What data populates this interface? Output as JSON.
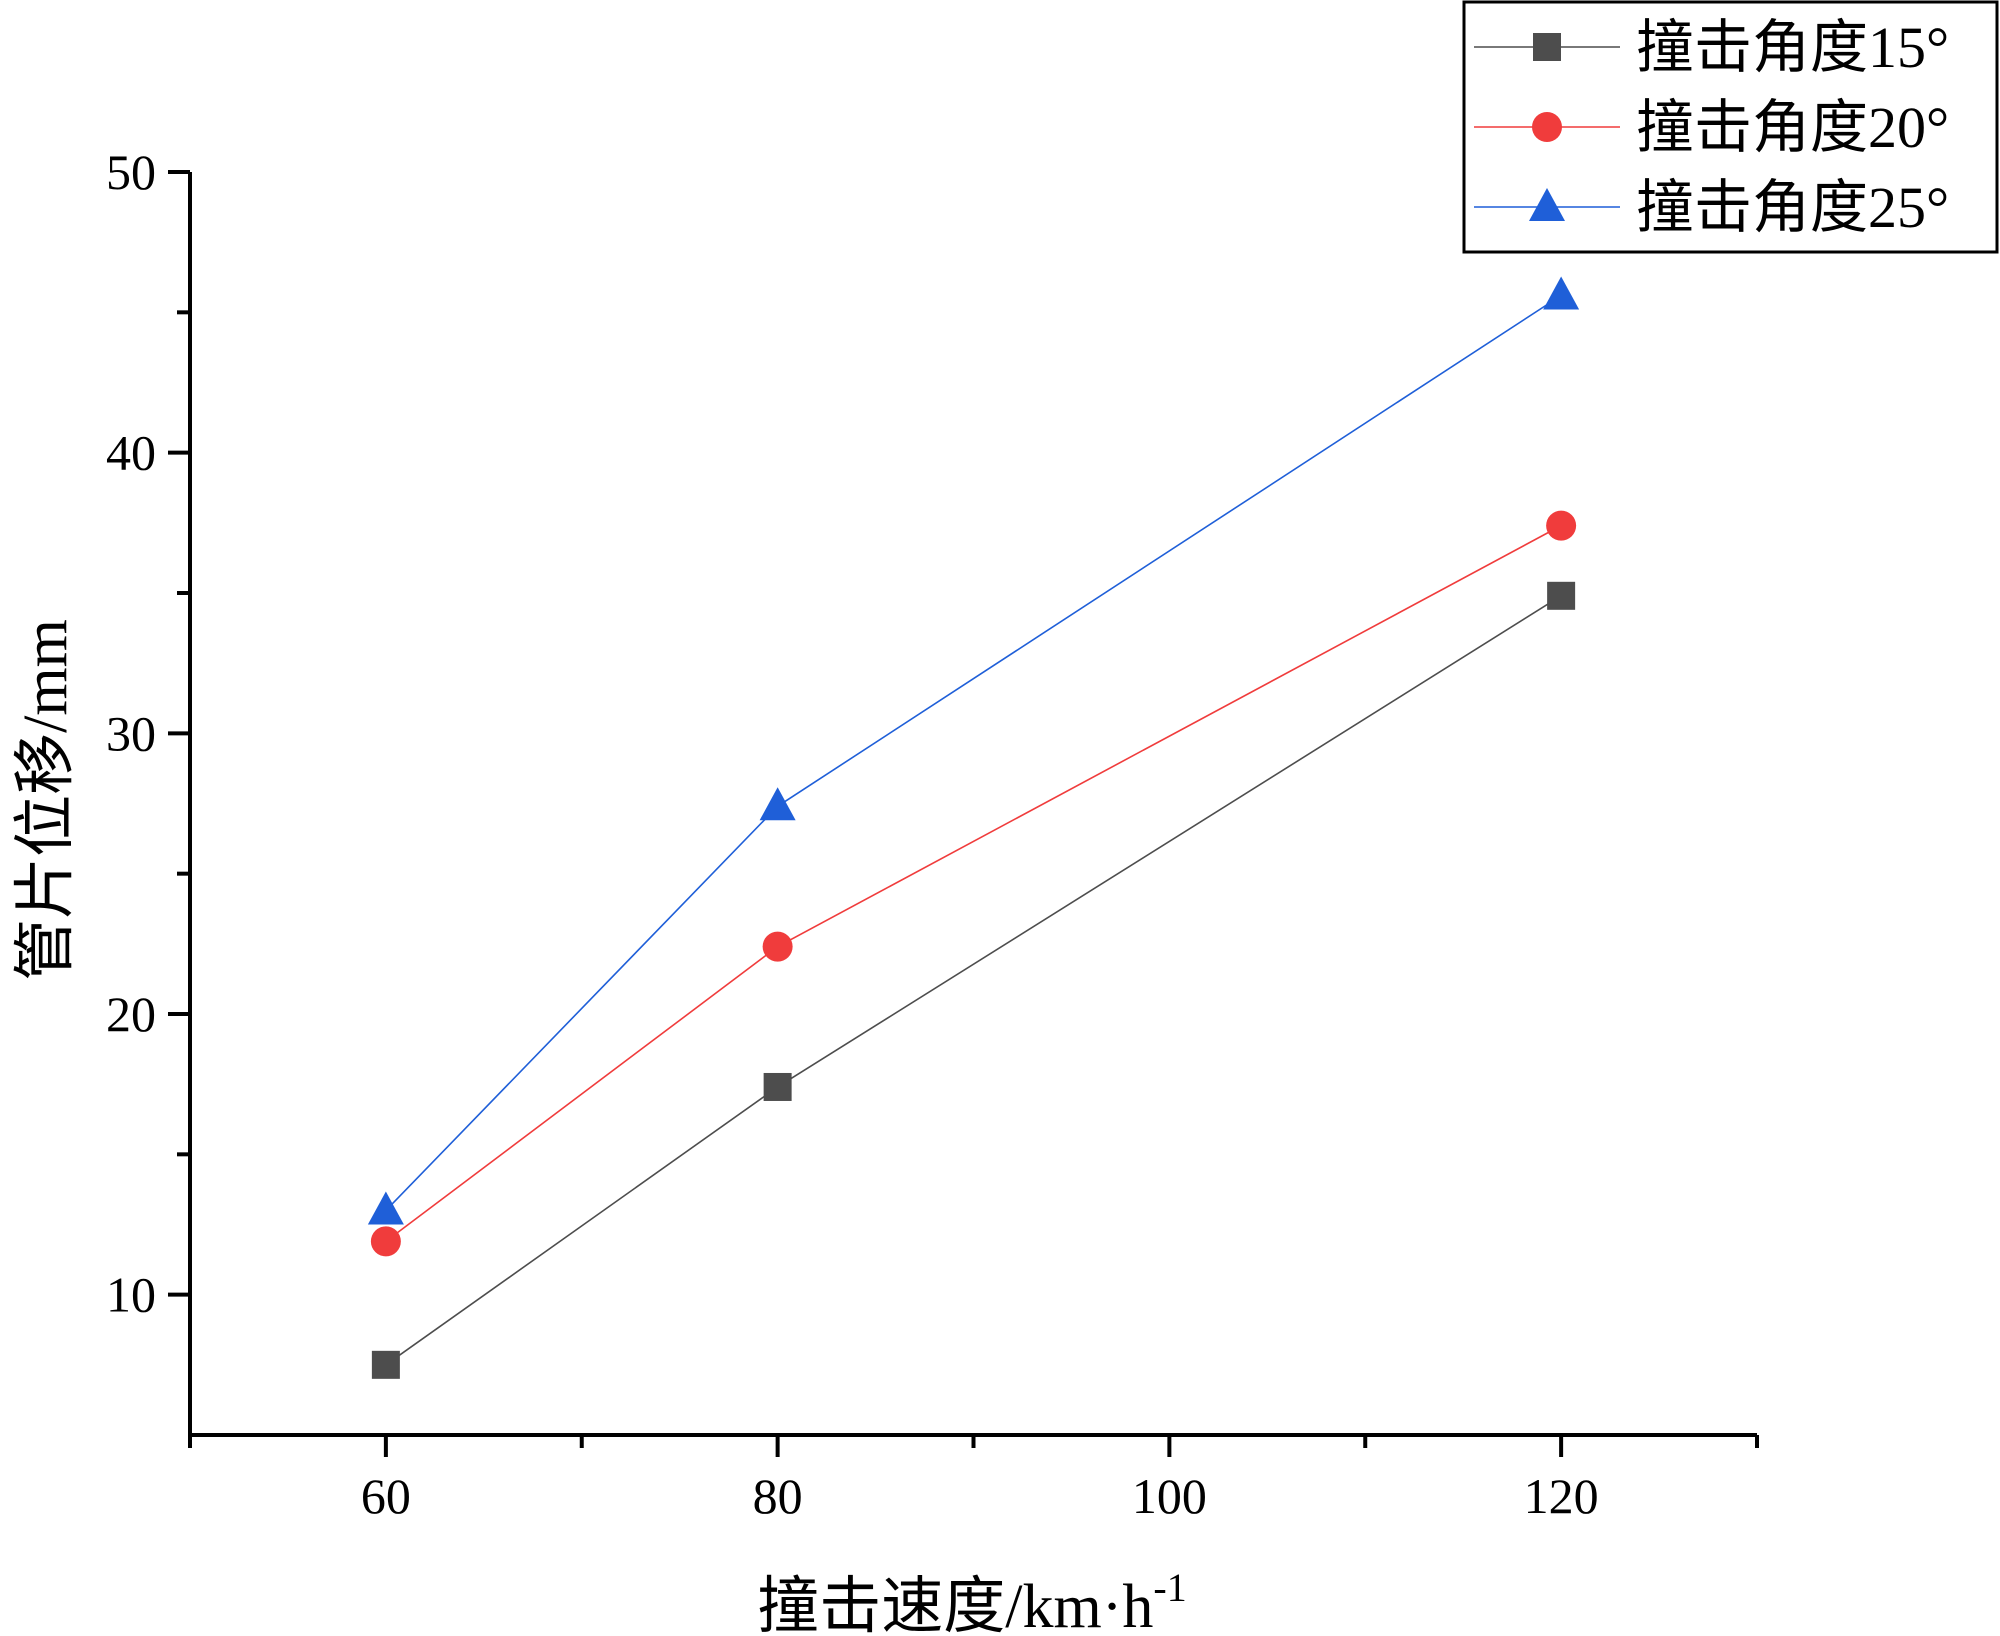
{
  "chart_data": {
    "type": "line",
    "x": [
      60,
      80,
      120
    ],
    "xlabel": "撞击速度/km·h",
    "xlabel_sup": "-1",
    "ylabel": "管片位移/mm",
    "xlim": [
      50,
      130
    ],
    "ylim": [
      5,
      50
    ],
    "xticks": [
      60,
      80,
      100,
      120
    ],
    "yticks": [
      10,
      20,
      30,
      40,
      50
    ],
    "grid": false,
    "legend_position": "top-right",
    "series": [
      {
        "name": "撞击角度15°",
        "color": "#4d4d4d",
        "marker": "square",
        "values": [
          7.5,
          17.4,
          34.9
        ]
      },
      {
        "name": "撞击角度20°",
        "color": "#f03c3c",
        "marker": "circle",
        "values": [
          11.9,
          22.4,
          37.4
        ]
      },
      {
        "name": "撞击角度25°",
        "color": "#1f5fd8",
        "marker": "triangle",
        "values": [
          13.0,
          27.4,
          45.6
        ]
      }
    ]
  }
}
